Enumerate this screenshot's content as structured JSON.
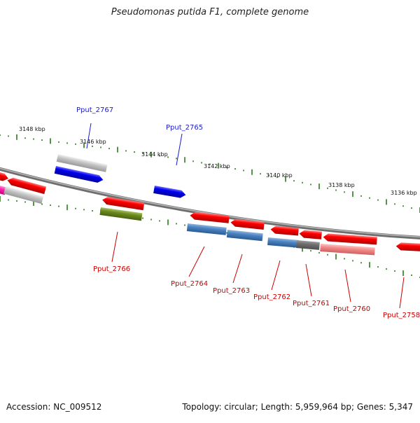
{
  "title": "Pseudomonas putida F1, complete genome",
  "footer": {
    "accession": "Accession: NC_009512",
    "info": "Topology: circular; Length: 5,959,964 bp; Genes: 5,347"
  },
  "colors": {
    "backbone": "#808080",
    "tick": "#2a7a1a",
    "label_blue": "#1a1ad0",
    "label_red": "#cc0000"
  },
  "scale_labels": [
    "3148 kbp",
    "3146 kbp",
    "3144 kbp",
    "3142 kbp",
    "3140 kbp",
    "3138 kbp",
    "3136 kbp"
  ],
  "gene_labels": [
    {
      "text": "Pput_2767",
      "color": "blue"
    },
    {
      "text": "Pput_2765",
      "color": "blue"
    },
    {
      "text": "Pput_2766",
      "color": "red"
    },
    {
      "text": "Pput_2764",
      "color": "red"
    },
    {
      "text": "Pput_2763",
      "color": "red"
    },
    {
      "text": "Pput_2762",
      "color": "red"
    },
    {
      "text": "Pput_2761",
      "color": "red"
    },
    {
      "text": "Pput_2760",
      "color": "red"
    },
    {
      "text": "Pput_2758",
      "color": "red"
    }
  ]
}
